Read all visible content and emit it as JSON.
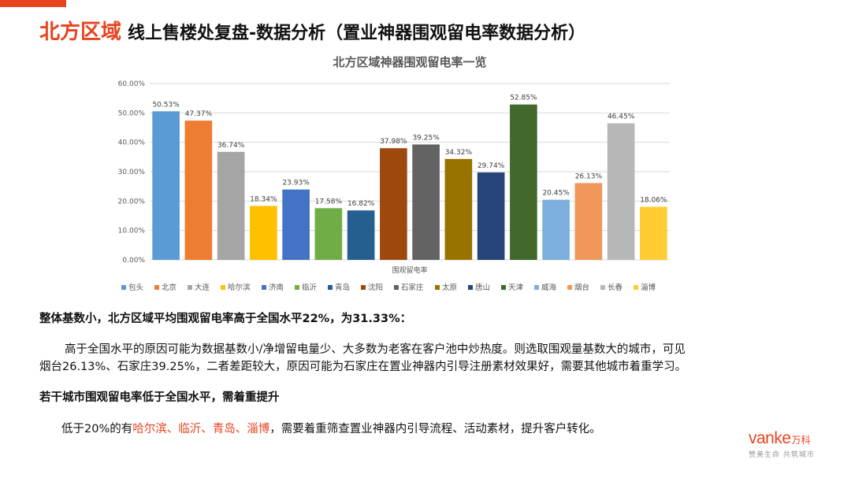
{
  "header": {
    "title_red": "北方区域",
    "title_main": "线上售楼处复盘-数据分析（置业神器围观留电率数据分析）"
  },
  "chart_data": {
    "type": "bar",
    "title": "北方区域神器围观留电率一览",
    "xlabel": "围观留电率",
    "ylabel": "",
    "ylim": [
      0,
      60
    ],
    "y_ticks": [
      "0.00%",
      "10.00%",
      "20.00%",
      "30.00%",
      "40.00%",
      "50.00%",
      "60.00%"
    ],
    "grid": true,
    "legend_position": "bottom",
    "categories": [
      "包头",
      "北京",
      "大连",
      "哈尔滨",
      "济南",
      "临沂",
      "青岛",
      "沈阳",
      "石家庄",
      "太原",
      "唐山",
      "天津",
      "威海",
      "烟台",
      "长春",
      "淄博"
    ],
    "values": [
      50.53,
      47.37,
      36.74,
      18.34,
      23.93,
      17.58,
      16.82,
      37.98,
      39.25,
      34.32,
      29.74,
      52.85,
      20.45,
      26.13,
      46.45,
      18.06
    ],
    "labels": [
      "50.53%",
      "47.37%",
      "36.74%",
      "18.34%",
      "23.93%",
      "17.58%",
      "16.82%",
      "37.98%",
      "39.25%",
      "34.32%",
      "29.74%",
      "52.85%",
      "20.45%",
      "26.13%",
      "46.45%",
      "18.06%"
    ],
    "colors": [
      "#5b9bd5",
      "#ed7d31",
      "#a5a5a5",
      "#ffc000",
      "#4472c4",
      "#70ad47",
      "#255e91",
      "#9e480e",
      "#636363",
      "#997300",
      "#264478",
      "#43682b",
      "#7cafdd",
      "#f1975a",
      "#b7b7b7",
      "#ffcd33"
    ]
  },
  "summary": {
    "heading1": "整体基数小，北方区域平均围观留电率高于全国水平22%，为31.33%：",
    "para1_line1": "高于全国水平的原因可能为数据基数小/净增留电量少、大多数为老客在客户池中炒热度。则选取围观量基数大的城市，可见",
    "para1_line2": "烟台26.13%、石家庄39.25%，二者差距较大，原因可能为石家庄在置业神器内引导注册素材效果好，需要其他城市着重学习。",
    "heading2": "若干城市围观留电率低于全国水平，需着重提升",
    "para2_prefix": "低于20%的有",
    "para2_highlight": "哈尔滨、临沂、青岛、淄博",
    "para2_suffix": "，需要着重筛查置业神器内引导流程、活动素材，提升客户转化。"
  },
  "brand": {
    "logo_text": "vanke",
    "logo_cn": "万科",
    "slogan": "赞美生命 共筑城市"
  }
}
